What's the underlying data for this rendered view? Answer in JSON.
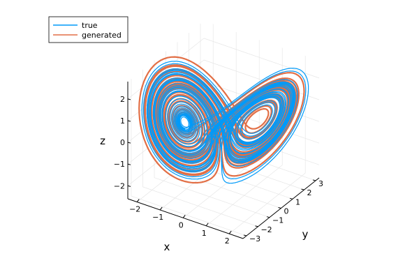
{
  "chart_data": {
    "type": "scatter3d",
    "title": "",
    "xlabel": "x",
    "ylabel": "y",
    "zlabel": "z",
    "x_ticks": [
      -2,
      -1,
      0,
      1,
      2
    ],
    "y_ticks": [
      -3,
      -2,
      -1,
      0,
      1,
      2,
      3
    ],
    "z_ticks": [
      -2,
      -1,
      0,
      1,
      2
    ],
    "xlim": [
      -2.4,
      2.6
    ],
    "ylim": [
      -3.3,
      3.3
    ],
    "zlim": [
      -2.6,
      2.8
    ],
    "grid": true,
    "legend_position": "top-left",
    "series": [
      {
        "name": "true",
        "color": "#009af9",
        "style": "solid",
        "description": "Lorenz-like butterfly attractor trajectory"
      },
      {
        "name": "generated",
        "color": "#e26f46",
        "style": "solid",
        "description": "Lorenz-like butterfly attractor trajectory"
      }
    ]
  }
}
